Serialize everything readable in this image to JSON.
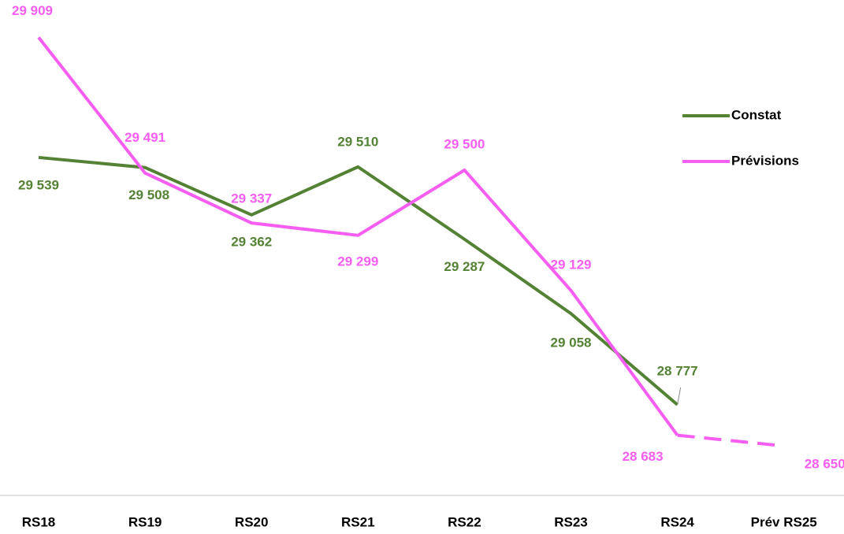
{
  "chart_data": {
    "type": "line",
    "categories": [
      "RS18",
      "RS19",
      "RS20",
      "RS21",
      "RS22",
      "RS23",
      "RS24",
      "Prév RS25"
    ],
    "series": [
      {
        "name": "Constat",
        "color": "#548235",
        "values": [
          29539,
          29508,
          29362,
          29510,
          29287,
          29058,
          28777,
          null
        ],
        "value_labels": [
          "29 539",
          "29 508",
          "29 362",
          "29 510",
          "29 287",
          "29 058",
          "28 777",
          null
        ]
      },
      {
        "name": "Prévisions",
        "color": "#f55ef0",
        "values": [
          29909,
          29491,
          29337,
          29299,
          29500,
          29129,
          28683,
          28650
        ],
        "value_labels": [
          "29 909",
          "29 491",
          "29 337",
          "29 299",
          "29 500",
          "29 129",
          "28 683",
          "28 650"
        ],
        "dashed_from_index": 6
      }
    ],
    "ylim": [
      28500,
      30000
    ],
    "legend": "right"
  }
}
